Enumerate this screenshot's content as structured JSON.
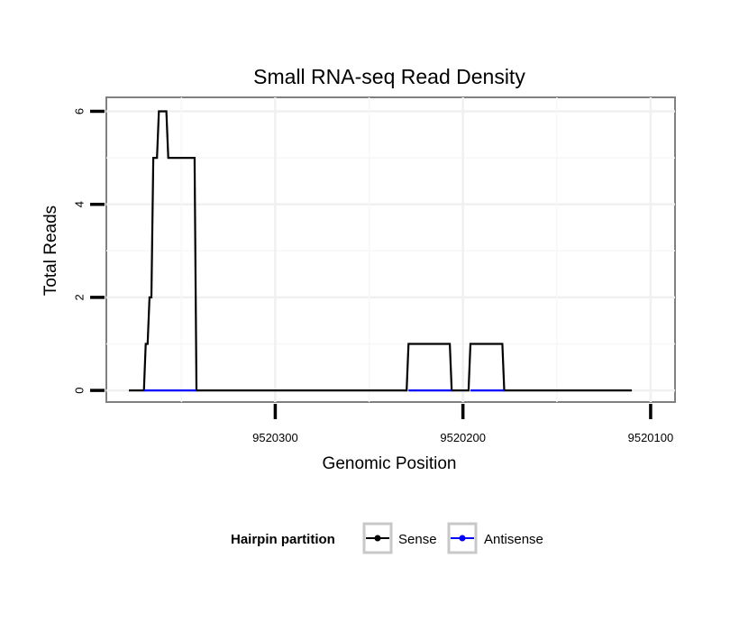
{
  "chart_data": {
    "type": "line",
    "title": "Small RNA-seq Read Density",
    "xlabel": "Genomic Position",
    "ylabel": "Total Reads",
    "xlim": [
      9520390,
      9520087
    ],
    "ylim": [
      -0.25,
      6.3
    ],
    "x_reversed": true,
    "x_ticks": [
      9520300,
      9520200,
      9520100
    ],
    "x_tick_labels": [
      "9520300",
      "9520200",
      "9520100"
    ],
    "y_ticks": [
      0,
      2,
      4,
      6
    ],
    "y_tick_labels": [
      "0",
      "2",
      "4",
      "6"
    ],
    "grid": true,
    "legend": {
      "title": "Hairpin partition",
      "position": "bottom",
      "entries": [
        {
          "label": "Sense",
          "color": "#000000"
        },
        {
          "label": "Antisense",
          "color": "#0000ff"
        }
      ]
    },
    "series": [
      {
        "name": "Sense",
        "color": "#000000",
        "x": [
          9520378,
          9520370,
          9520369,
          9520368,
          9520367,
          9520366,
          9520365,
          9520363,
          9520362,
          9520358,
          9520357,
          9520353,
          9520352,
          9520343,
          9520342,
          9520230,
          9520229,
          9520207,
          9520206,
          9520197,
          9520196,
          9520179,
          9520178,
          9520171,
          9520170,
          9520110
        ],
        "values": [
          0,
          0,
          1,
          1,
          2,
          2,
          5,
          5,
          6,
          6,
          5,
          5,
          5,
          5,
          0,
          0,
          1,
          1,
          0,
          0,
          1,
          1,
          0,
          0,
          0,
          0
        ]
      },
      {
        "name": "Antisense",
        "color": "#0000ff",
        "x": [
          9520370,
          9520342
        ],
        "values": [
          0,
          0
        ],
        "extra_segments": [
          {
            "x": [
              9520229,
              9520206
            ],
            "values": [
              0,
              0
            ]
          },
          {
            "x": [
              9520196,
              9520178
            ],
            "values": [
              0,
              0
            ]
          }
        ]
      }
    ]
  }
}
